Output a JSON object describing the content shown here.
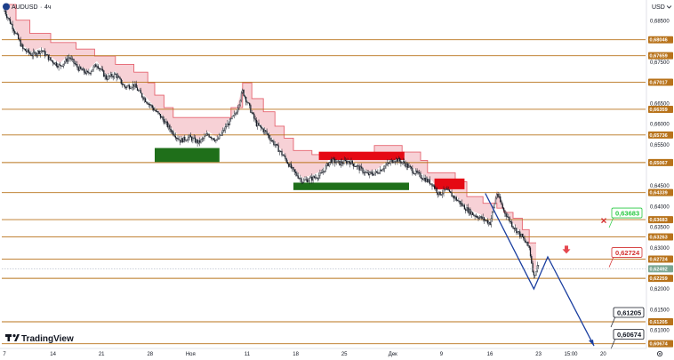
{
  "header": {
    "symbol": "AUDUSD",
    "interval": "4ч",
    "currency": "USD"
  },
  "logo": {
    "text": "TradingView",
    "icon": "tradingview-logo-icon"
  },
  "colors": {
    "level": "#b8731b",
    "candle": "#131722",
    "trailing_fill": "#f6c9cf",
    "trailing_line": "#e5636f",
    "demand_zone": "#1f6f1a",
    "supply_zone": "#e50914",
    "projection": "#1b3fa0",
    "target_up": "#26c940",
    "target_down": "#d32f2f",
    "current_price": "#7aa692",
    "arrow_down": "#e5474f"
  },
  "chart_data": {
    "type": "candlestick",
    "title": "",
    "y_axis": {
      "ylim": [
        0.6058,
        0.6901
      ],
      "ticks": [
        "0,68500",
        "0,68046",
        "0,67659",
        "0,67500",
        "0,67017",
        "0,66500",
        "0,66359",
        "0,66000",
        "0,65736",
        "0,65500",
        "0,65067",
        "0,64500",
        "0,64339",
        "0,64000",
        "0,63683",
        "0,63500",
        "0,63263",
        "0,63000",
        "0,62724",
        "0,62492",
        "0,62259",
        "0,62000",
        "0,61500",
        "0,61205",
        "0,61000",
        "0,60674"
      ]
    },
    "x_axis": {
      "ticks": [
        "7",
        "14",
        "21",
        "28",
        "Ноя",
        "11",
        "18",
        "25",
        "Дек",
        "9",
        "16",
        "23",
        "15:00",
        "20"
      ],
      "tick_bar_index": [
        0,
        42,
        84,
        126,
        161,
        210,
        252,
        294,
        336,
        378,
        420,
        462,
        490,
        518
      ]
    },
    "grid": false,
    "levels": [
      {
        "label": "0,68500",
        "value": 0.685,
        "highlight": false
      },
      {
        "label": "0,68046",
        "value": 0.68046,
        "highlight": true
      },
      {
        "label": "0,67659",
        "value": 0.67659,
        "highlight": true
      },
      {
        "label": "0,67500",
        "value": 0.675,
        "highlight": false
      },
      {
        "label": "0,67017",
        "value": 0.67017,
        "highlight": true
      },
      {
        "label": "0,66500",
        "value": 0.665,
        "highlight": false
      },
      {
        "label": "0,66359",
        "value": 0.66359,
        "highlight": true
      },
      {
        "label": "0,66000",
        "value": 0.66,
        "highlight": false
      },
      {
        "label": "0,65736",
        "value": 0.65736,
        "highlight": true
      },
      {
        "label": "0,65500",
        "value": 0.655,
        "highlight": false
      },
      {
        "label": "0,65067",
        "value": 0.65067,
        "highlight": true
      },
      {
        "label": "0,64500",
        "value": 0.645,
        "highlight": false
      },
      {
        "label": "0,64339",
        "value": 0.64339,
        "highlight": true
      },
      {
        "label": "0,64000",
        "value": 0.64,
        "highlight": false
      },
      {
        "label": "0,63683",
        "value": 0.63683,
        "highlight": true
      },
      {
        "label": "0,63500",
        "value": 0.635,
        "highlight": false
      },
      {
        "label": "0,63263",
        "value": 0.63263,
        "highlight": true
      },
      {
        "label": "0,63000",
        "value": 0.63,
        "highlight": false
      },
      {
        "label": "0,62724",
        "value": 0.62724,
        "highlight": true
      },
      {
        "label": "0,62259",
        "value": 0.62259,
        "highlight": true
      },
      {
        "label": "0,62000",
        "value": 0.62,
        "highlight": false
      },
      {
        "label": "0,61500",
        "value": 0.615,
        "highlight": false
      },
      {
        "label": "0,61205",
        "value": 0.61205,
        "highlight": true
      },
      {
        "label": "0,61000",
        "value": 0.61,
        "highlight": false
      },
      {
        "label": "0,60674",
        "value": 0.60674,
        "highlight": true
      }
    ],
    "current_price": {
      "label": "0,62492",
      "value": 0.62492
    },
    "price_path": [
      [
        0,
        0.6875
      ],
      [
        8,
        0.683
      ],
      [
        16,
        0.6782
      ],
      [
        24,
        0.6768
      ],
      [
        32,
        0.6779
      ],
      [
        40,
        0.6755
      ],
      [
        48,
        0.674
      ],
      [
        56,
        0.6762
      ],
      [
        64,
        0.6735
      ],
      [
        72,
        0.6722
      ],
      [
        80,
        0.6745
      ],
      [
        88,
        0.6712
      ],
      [
        96,
        0.672
      ],
      [
        104,
        0.669
      ],
      [
        112,
        0.6695
      ],
      [
        120,
        0.6665
      ],
      [
        128,
        0.664
      ],
      [
        136,
        0.6615
      ],
      [
        144,
        0.6585
      ],
      [
        152,
        0.656
      ],
      [
        160,
        0.6568
      ],
      [
        168,
        0.6555
      ],
      [
        176,
        0.6575
      ],
      [
        184,
        0.656
      ],
      [
        192,
        0.6595
      ],
      [
        200,
        0.6625
      ],
      [
        206,
        0.668
      ],
      [
        212,
        0.664
      ],
      [
        218,
        0.66
      ],
      [
        226,
        0.658
      ],
      [
        234,
        0.655
      ],
      [
        242,
        0.652
      ],
      [
        250,
        0.6485
      ],
      [
        258,
        0.6462
      ],
      [
        266,
        0.6468
      ],
      [
        274,
        0.6478
      ],
      [
        282,
        0.6512
      ],
      [
        290,
        0.6505
      ],
      [
        298,
        0.651
      ],
      [
        306,
        0.6495
      ],
      [
        314,
        0.6478
      ],
      [
        322,
        0.6482
      ],
      [
        330,
        0.65
      ],
      [
        338,
        0.6515
      ],
      [
        346,
        0.6505
      ],
      [
        354,
        0.6485
      ],
      [
        362,
        0.647
      ],
      [
        370,
        0.6455
      ],
      [
        376,
        0.643
      ],
      [
        382,
        0.644
      ],
      [
        390,
        0.642
      ],
      [
        398,
        0.6398
      ],
      [
        406,
        0.638
      ],
      [
        414,
        0.637
      ],
      [
        420,
        0.636
      ],
      [
        426,
        0.6432
      ],
      [
        432,
        0.639
      ],
      [
        440,
        0.6352
      ],
      [
        448,
        0.6325
      ],
      [
        454,
        0.63
      ],
      [
        458,
        0.623
      ],
      [
        462,
        0.6262
      ]
    ],
    "trailing_stop": [
      [
        0,
        0.689
      ],
      [
        10,
        0.689
      ],
      [
        10,
        0.6852
      ],
      [
        22,
        0.6852
      ],
      [
        22,
        0.682
      ],
      [
        40,
        0.682
      ],
      [
        40,
        0.6798
      ],
      [
        62,
        0.6798
      ],
      [
        62,
        0.6782
      ],
      [
        78,
        0.6782
      ],
      [
        78,
        0.6765
      ],
      [
        96,
        0.6765
      ],
      [
        96,
        0.6745
      ],
      [
        112,
        0.6745
      ],
      [
        112,
        0.6726
      ],
      [
        124,
        0.6726
      ],
      [
        124,
        0.67
      ],
      [
        130,
        0.67
      ],
      [
        130,
        0.667
      ],
      [
        138,
        0.667
      ],
      [
        138,
        0.664
      ],
      [
        146,
        0.664
      ],
      [
        146,
        0.6616
      ],
      [
        180,
        0.6616
      ],
      [
        180,
        0.6616
      ],
      [
        196,
        0.6616
      ],
      [
        196,
        0.664
      ],
      [
        206,
        0.664
      ],
      [
        206,
        0.67
      ],
      [
        214,
        0.67
      ],
      [
        214,
        0.6662
      ],
      [
        224,
        0.6662
      ],
      [
        224,
        0.663
      ],
      [
        234,
        0.663
      ],
      [
        234,
        0.6595
      ],
      [
        242,
        0.6595
      ],
      [
        242,
        0.6566
      ],
      [
        250,
        0.6566
      ],
      [
        250,
        0.6536
      ],
      [
        266,
        0.6536
      ],
      [
        266,
        0.6526
      ],
      [
        320,
        0.6526
      ],
      [
        320,
        0.6548
      ],
      [
        344,
        0.6548
      ],
      [
        344,
        0.6532
      ],
      [
        360,
        0.6532
      ],
      [
        360,
        0.6512
      ],
      [
        366,
        0.6512
      ],
      [
        366,
        0.6482
      ],
      [
        390,
        0.6482
      ],
      [
        390,
        0.646
      ],
      [
        400,
        0.646
      ],
      [
        400,
        0.6424
      ],
      [
        414,
        0.6424
      ],
      [
        414,
        0.6408
      ],
      [
        426,
        0.6408
      ],
      [
        426,
        0.6396
      ],
      [
        432,
        0.6396
      ],
      [
        432,
        0.6386
      ],
      [
        440,
        0.6386
      ],
      [
        440,
        0.6372
      ],
      [
        448,
        0.6372
      ],
      [
        448,
        0.6344
      ],
      [
        454,
        0.6344
      ],
      [
        454,
        0.6312
      ],
      [
        460,
        0.6312
      ]
    ],
    "zones": [
      {
        "kind": "demand",
        "x0": 130,
        "x1": 186,
        "y0": 0.6508,
        "y1": 0.6542
      },
      {
        "kind": "demand",
        "x0": 250,
        "x1": 350,
        "y0": 0.644,
        "y1": 0.6458
      },
      {
        "kind": "supply",
        "x0": 272,
        "x1": 346,
        "y0": 0.6513,
        "y1": 0.6533
      },
      {
        "kind": "supply",
        "x0": 372,
        "x1": 398,
        "y0": 0.6442,
        "y1": 0.6468
      }
    ],
    "projection_path": [
      [
        416,
        0.6432
      ],
      [
        458,
        0.62
      ],
      [
        470,
        0.6278
      ],
      [
        510,
        0.6062
      ]
    ],
    "annotations": [
      {
        "text": "0,63683",
        "x": 500,
        "y": 0.63683,
        "kind": "target_up"
      },
      {
        "text": "0,62724",
        "x": 500,
        "y": 0.62724,
        "kind": "target_down"
      },
      {
        "text": "0,61205",
        "x": 500,
        "y": 0.61205,
        "kind": "target_neutral"
      },
      {
        "text": "0,60674",
        "x": 500,
        "y": 0.60674,
        "kind": "target_neutral"
      }
    ]
  }
}
